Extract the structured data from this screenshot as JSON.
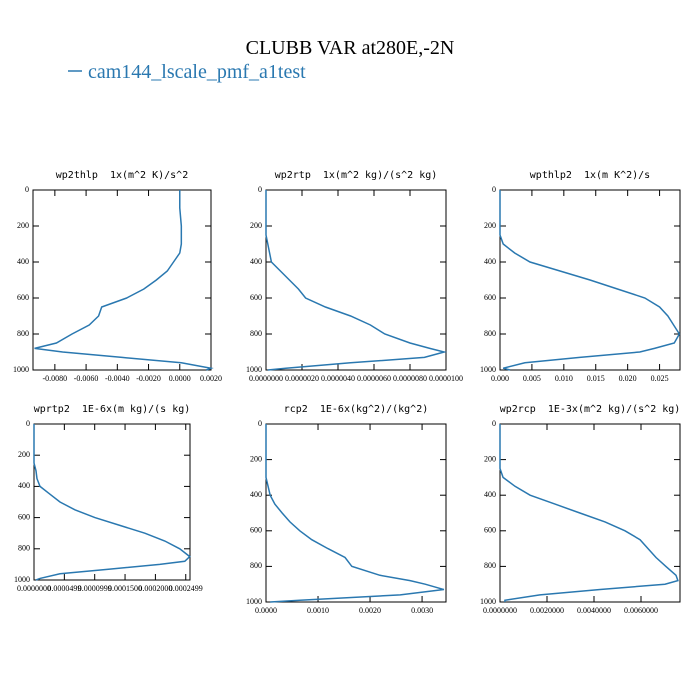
{
  "title": "CLUBB VAR at280E,-2N",
  "legend": {
    "name": "cam144_lscale_pmf_a1test",
    "color": "#2a78b0"
  },
  "chart_data": [
    {
      "type": "line",
      "title": "wp2thlp  1x(m^2 K)/s^2",
      "y": [
        0,
        100,
        200,
        250,
        300,
        350,
        400,
        450,
        500,
        550,
        600,
        650,
        700,
        750,
        800,
        850,
        880,
        900,
        930,
        960,
        990,
        1000
      ],
      "series": [
        {
          "color": "#2a78b0",
          "values": [
            0,
            0,
            0.0001,
            0.0001,
            0.0001,
            0,
            -0.0004,
            -0.0008,
            -0.0015,
            -0.0023,
            -0.0034,
            -0.005,
            -0.0052,
            -0.0058,
            -0.0069,
            -0.0079,
            -0.0093,
            -0.0075,
            -0.0037,
            0.0001,
            0.002,
            0.0017
          ]
        }
      ],
      "xlim": [
        -0.0094,
        0.002
      ],
      "xticks": [
        {
          "value": -0.008,
          "label": "-0.0080"
        },
        {
          "value": -0.006,
          "label": "-0.0060"
        },
        {
          "value": -0.004,
          "label": "-0.0040"
        },
        {
          "value": -0.002,
          "label": "-0.0020"
        },
        {
          "value": 0,
          "label": "0.0000"
        },
        {
          "value": 0.002,
          "label": "0.0020"
        }
      ],
      "ylim": [
        1000,
        0
      ],
      "yticks": [
        0,
        200,
        400,
        600,
        800,
        1000
      ]
    },
    {
      "type": "line",
      "title": "wp2rtp  1x(m^2 kg)/(s^2 kg)",
      "y": [
        0,
        100,
        200,
        250,
        300,
        350,
        400,
        450,
        500,
        550,
        600,
        650,
        700,
        750,
        800,
        850,
        880,
        900,
        930,
        960,
        990,
        1000
      ],
      "series": [
        {
          "color": "#2a78b0",
          "values": [
            0,
            0,
            0,
            0,
            1e-07,
            2e-07,
            3e-07,
            8e-07,
            1.3e-06,
            1.8e-06,
            2.2e-06,
            3.3e-06,
            4.7e-06,
            5.8e-06,
            6.6e-06,
            8e-06,
            9.1e-06,
            9.9e-06,
            8.8e-06,
            4.7e-06,
            1.1e-06,
            1e-07
          ]
        }
      ],
      "xlim": [
        0,
        1e-05
      ],
      "xticks": [
        {
          "value": 0,
          "label": "0.0000000"
        },
        {
          "value": 2e-06,
          "label": "0.0000020"
        },
        {
          "value": 4e-06,
          "label": "0.0000040"
        },
        {
          "value": 6e-06,
          "label": "0.0000060"
        },
        {
          "value": 8e-06,
          "label": "0.0000080"
        },
        {
          "value": 1e-05,
          "label": "0.0000100"
        }
      ],
      "ylim": [
        1000,
        0
      ],
      "yticks": [
        0,
        200,
        400,
        600,
        800,
        1000
      ]
    },
    {
      "type": "line",
      "title": "wpthlp2  1x(m K^2)/s",
      "y": [
        0,
        100,
        200,
        250,
        300,
        350,
        400,
        450,
        500,
        550,
        600,
        650,
        700,
        750,
        800,
        850,
        880,
        900,
        930,
        960,
        990,
        1000
      ],
      "series": [
        {
          "color": "#2a78b0",
          "values": [
            0,
            0,
            0,
            0,
            0.0005,
            0.0023,
            0.0047,
            0.0094,
            0.0141,
            0.0184,
            0.0227,
            0.025,
            0.0263,
            0.0272,
            0.0281,
            0.0273,
            0.0242,
            0.0219,
            0.0125,
            0.0039,
            0.0005,
            0.0016
          ]
        }
      ],
      "xlim": [
        0,
        0.0282
      ],
      "xticks": [
        {
          "value": 0,
          "label": "0.000"
        },
        {
          "value": 0.005,
          "label": "0.005"
        },
        {
          "value": 0.01,
          "label": "0.010"
        },
        {
          "value": 0.015,
          "label": "0.015"
        },
        {
          "value": 0.02,
          "label": "0.020"
        },
        {
          "value": 0.025,
          "label": "0.025"
        }
      ],
      "ylim": [
        1000,
        0
      ],
      "yticks": [
        0,
        200,
        400,
        600,
        800,
        1000
      ]
    },
    {
      "type": "line",
      "title": "wprtp2  1E-6x(m kg)/(s kg)",
      "y": [
        0,
        100,
        200,
        250,
        300,
        350,
        400,
        450,
        500,
        550,
        600,
        650,
        700,
        750,
        800,
        850,
        880,
        900,
        930,
        960,
        990,
        1000
      ],
      "series": [
        {
          "color": "#2a78b0",
          "values": [
            0,
            0,
            0,
            0,
            3.3e-06,
            4.9e-06,
            9.9e-06,
            2.63e-05,
            4.28e-05,
            6.74e-05,
            0.0001003,
            0.0001414,
            0.0001826,
            0.0002155,
            0.0002401,
            0.0002566,
            0.0002484,
            0.0002072,
            0.000125,
            4.28e-05,
            9.9e-06,
            3.3e-06
          ]
        }
      ],
      "xlim": [
        0,
        0.000257
      ],
      "xticks": [
        {
          "value": 0,
          "label": "0.0000000"
        },
        {
          "value": 5e-05,
          "label": "0.0000499"
        },
        {
          "value": 0.0001,
          "label": "0.0000999"
        },
        {
          "value": 0.00015,
          "label": "0.0001500"
        },
        {
          "value": 0.0002,
          "label": "0.0002000"
        },
        {
          "value": 0.00025,
          "label": "0.0002499"
        }
      ],
      "ylim": [
        1000,
        0
      ],
      "yticks": [
        0,
        200,
        400,
        600,
        800,
        1000
      ]
    },
    {
      "type": "line",
      "title": "rcp2  1E-6x(kg^2)/(kg^2)",
      "y": [
        0,
        100,
        200,
        250,
        300,
        350,
        400,
        450,
        500,
        550,
        600,
        650,
        700,
        750,
        800,
        850,
        880,
        900,
        930,
        960,
        990,
        1000
      ],
      "series": [
        {
          "color": "#2a78b0",
          "values": [
            0,
            0,
            0,
            0,
            0,
            4e-05,
            8e-05,
            0.00017,
            0.00031,
            0.00046,
            0.00065,
            0.00088,
            0.00119,
            0.00152,
            0.00165,
            0.00219,
            0.00277,
            0.00306,
            0.00342,
            0.00258,
            0.00065,
            8e-05
          ]
        }
      ],
      "xlim": [
        0,
        0.00346
      ],
      "xticks": [
        {
          "value": 0,
          "label": "0.0000"
        },
        {
          "value": 0.001,
          "label": "0.0010"
        },
        {
          "value": 0.002,
          "label": "0.0020"
        },
        {
          "value": 0.003,
          "label": "0.0030"
        }
      ],
      "ylim": [
        1000,
        0
      ],
      "yticks": [
        0,
        200,
        400,
        600,
        800,
        1000
      ]
    },
    {
      "type": "line",
      "title": "wp2rcp  1E-3x(m^2 kg)/(s^2 kg)",
      "y": [
        0,
        100,
        200,
        250,
        300,
        350,
        400,
        450,
        500,
        550,
        600,
        650,
        700,
        750,
        800,
        850,
        880,
        900,
        930,
        960,
        990,
        1000
      ],
      "series": [
        {
          "color": "#2a78b0",
          "values": [
            0,
            0,
            0,
            0,
            0.00013,
            0.00064,
            0.00128,
            0.00234,
            0.0034,
            0.00447,
            0.00532,
            0.00596,
            0.0063,
            0.00664,
            0.00706,
            0.00749,
            0.00757,
            0.00702,
            0.00426,
            0.0017,
            0.00021,
            0.00021
          ]
        }
      ],
      "xlim": [
        0,
        0.00766
      ],
      "xticks": [
        {
          "value": 0,
          "label": "0.0000000"
        },
        {
          "value": 0.002,
          "label": "0.0020000"
        },
        {
          "value": 0.004,
          "label": "0.0040000"
        },
        {
          "value": 0.006,
          "label": "0.0060000"
        }
      ],
      "ylim": [
        1000,
        0
      ],
      "yticks": [
        0,
        200,
        400,
        600,
        800,
        1000
      ]
    }
  ]
}
